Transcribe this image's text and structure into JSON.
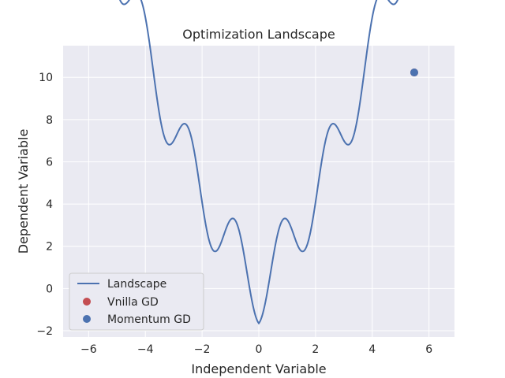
{
  "chart_data": {
    "type": "line",
    "title": "Optimization Landscape",
    "xlabel": "Independent Variable",
    "ylabel": "Dependent Variable",
    "xlim": [
      -6.9,
      6.9
    ],
    "ylim": [
      -2.3,
      11.5
    ],
    "xticks": [
      -6,
      -4,
      -2,
      0,
      2,
      4,
      6
    ],
    "yticks": [
      -2,
      0,
      2,
      4,
      6,
      8,
      10
    ],
    "grid": true,
    "legend_position": "lower-left",
    "landscape": {
      "name": "Landscape",
      "color": "#4c72b0",
      "x_range": [
        -6.2832,
        6.2832
      ],
      "formula": "1.65*|x| - 1.65*cos(3.8*x) + 0.3*x^2"
    },
    "points": [
      {
        "name": "Vnilla GD",
        "color": "#c44e52",
        "x": 5.48,
        "y": 10.23
      },
      {
        "name": "Momentum GD",
        "color": "#4c72b0",
        "x": 5.48,
        "y": 10.23
      }
    ]
  }
}
